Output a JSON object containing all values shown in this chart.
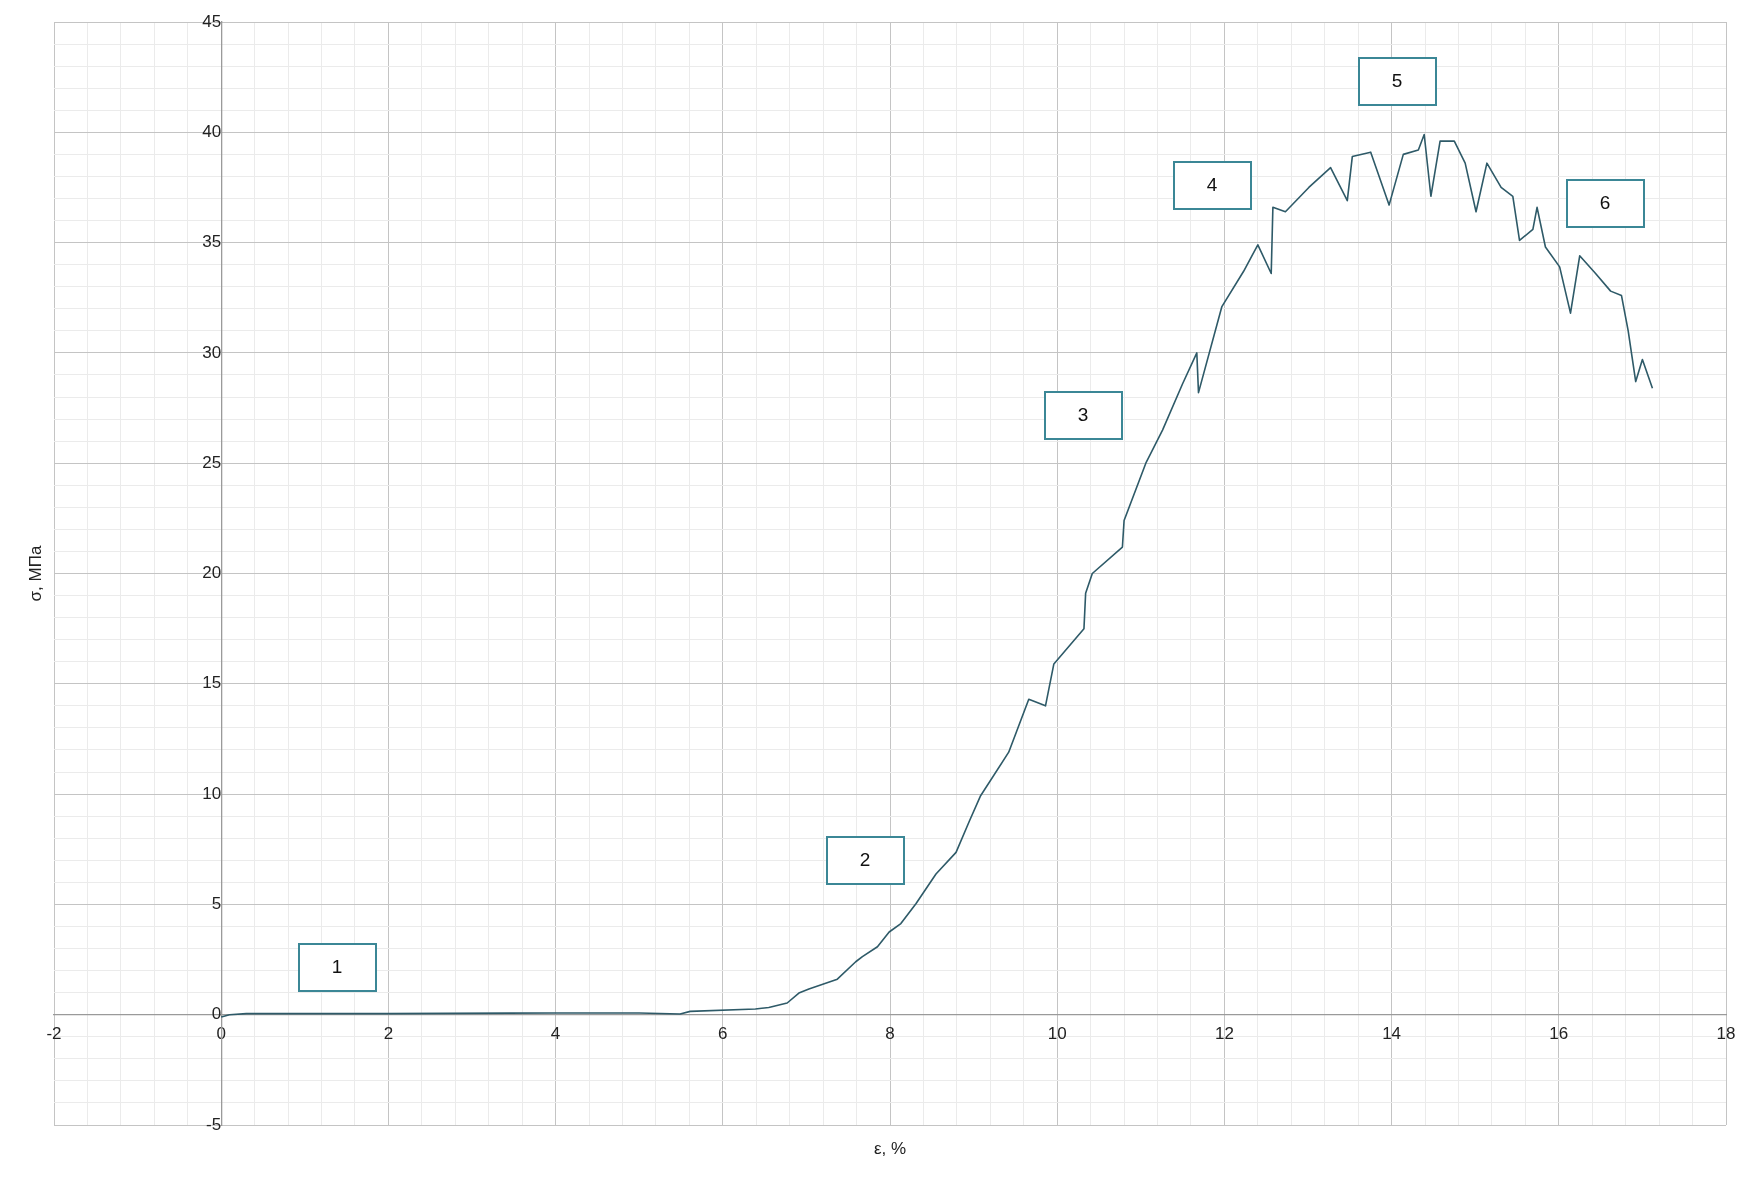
{
  "chart_data": {
    "type": "line",
    "xlabel": "ε, %",
    "ylabel": "σ, МПа",
    "x": [
      0,
      0.1,
      0.3,
      2,
      4,
      5,
      5.49,
      5.61,
      6.39,
      6.55,
      6.77,
      6.91,
      7.03,
      7.37,
      7.59,
      7.67,
      7.85,
      7.99,
      8.13,
      8.31,
      8.55,
      8.79,
      8.95,
      9.08,
      9.42,
      9.66,
      9.86,
      9.96,
      10.32,
      10.34,
      10.42,
      10.78,
      10.8,
      11.06,
      11.26,
      11.5,
      11.67,
      11.69,
      11.97,
      12.23,
      12.4,
      12.56,
      12.58,
      12.73,
      13.01,
      13.27,
      13.47,
      13.53,
      13.75,
      13.97,
      14.14,
      14.32,
      14.39,
      14.47,
      14.58,
      14.75,
      14.88,
      15.01,
      15.14,
      15.31,
      15.45,
      15.53,
      15.69,
      15.74,
      15.84,
      16.01,
      16.14,
      16.25,
      16.44,
      16.62,
      16.75,
      16.83,
      16.92,
      17,
      17.12
    ],
    "series": [
      {
        "color": "#2e5a68",
        "values": [
          -0.1,
          0,
          0.05,
          0.05,
          0.08,
          0.08,
          0.03,
          0.15,
          0.26,
          0.33,
          0.53,
          0.98,
          1.16,
          1.61,
          2.4,
          2.63,
          3.08,
          3.75,
          4.13,
          5.03,
          6.38,
          7.36,
          8.78,
          9.9,
          11.9,
          14.3,
          14,
          15.9,
          17.5,
          19.1,
          20,
          21.2,
          22.4,
          25,
          26.5,
          28.6,
          30,
          28.2,
          32.1,
          33.7,
          34.9,
          33.6,
          36.6,
          36.4,
          37.5,
          38.4,
          36.9,
          38.9,
          39.1,
          36.7,
          39,
          39.2,
          39.9,
          37.1,
          39.6,
          39.6,
          38.6,
          36.4,
          38.6,
          37.5,
          37.1,
          35.1,
          35.6,
          36.6,
          34.8,
          33.9,
          31.8,
          34.4,
          33.6,
          32.8,
          32.6,
          31,
          28.7,
          29.7,
          28.4
        ]
      }
    ],
    "xlim": [
      -2,
      18
    ],
    "xticks": [
      -2,
      {
        "value": -1.6,
        "label": null
      },
      {
        "value": -1.2,
        "label": null
      },
      {
        "value": -0.8,
        "label": null
      },
      {
        "value": -0.4,
        "label": null
      },
      0,
      {
        "value": 0.4,
        "label": null
      },
      {
        "value": 0.8,
        "label": null
      },
      {
        "value": 1.2,
        "label": null
      },
      {
        "value": 1.6,
        "label": null
      },
      2,
      {
        "value": 2.4,
        "label": null
      },
      {
        "value": 2.8,
        "label": null
      },
      {
        "value": 3.2,
        "label": null
      },
      {
        "value": 3.6,
        "label": null
      },
      4,
      {
        "value": 4.4,
        "label": null
      },
      {
        "value": 4.8,
        "label": null
      },
      {
        "value": 5.2,
        "label": null
      },
      {
        "value": 5.6,
        "label": null
      },
      6,
      {
        "value": 6.4,
        "label": null
      },
      {
        "value": 6.8,
        "label": null
      },
      {
        "value": 7.2,
        "label": null
      },
      {
        "value": 7.6,
        "label": null
      },
      8,
      {
        "value": 8.4,
        "label": null
      },
      {
        "value": 8.8,
        "label": null
      },
      {
        "value": 9.2,
        "label": null
      },
      {
        "value": 9.6,
        "label": null
      },
      10,
      {
        "value": 10.4,
        "label": null
      },
      {
        "value": 10.8,
        "label": null
      },
      {
        "value": 11.2,
        "label": null
      },
      {
        "value": 11.6,
        "label": null
      },
      12,
      {
        "value": 12.4,
        "label": null
      },
      {
        "value": 12.8,
        "label": null
      },
      {
        "value": 13.2,
        "label": null
      },
      {
        "value": 13.6,
        "label": null
      },
      14,
      {
        "value": 14.4,
        "label": null
      },
      {
        "value": 14.8,
        "label": null
      },
      {
        "value": 15.2,
        "label": null
      },
      {
        "value": 15.6,
        "label": null
      },
      16,
      {
        "value": 16.4,
        "label": null
      },
      {
        "value": 16.8,
        "label": null
      },
      {
        "value": 17.2,
        "label": null
      },
      {
        "value": 17.6,
        "label": null
      },
      18
    ],
    "ylim": [
      -5,
      45
    ],
    "yticks": [
      -5,
      {
        "value": -4,
        "label": null
      },
      {
        "value": -3,
        "label": null
      },
      {
        "value": -2,
        "label": null
      },
      {
        "value": -1,
        "label": null
      },
      0,
      {
        "value": 1,
        "label": null
      },
      {
        "value": 2,
        "label": null
      },
      {
        "value": 3,
        "label": null
      },
      {
        "value": 4,
        "label": null
      },
      5,
      {
        "value": 6,
        "label": null
      },
      {
        "value": 7,
        "label": null
      },
      {
        "value": 8,
        "label": null
      },
      {
        "value": 9,
        "label": null
      },
      10,
      {
        "value": 11,
        "label": null
      },
      {
        "value": 12,
        "label": null
      },
      {
        "value": 13,
        "label": null
      },
      {
        "value": 14,
        "label": null
      },
      15,
      {
        "value": 16,
        "label": null
      },
      {
        "value": 17,
        "label": null
      },
      {
        "value": 18,
        "label": null
      },
      {
        "value": 19,
        "label": null
      },
      20,
      {
        "value": 21,
        "label": null
      },
      {
        "value": 22,
        "label": null
      },
      {
        "value": 23,
        "label": null
      },
      {
        "value": 24,
        "label": null
      },
      25,
      {
        "value": 26,
        "label": null
      },
      {
        "value": 27,
        "label": null
      },
      {
        "value": 28,
        "label": null
      },
      {
        "value": 29,
        "label": null
      },
      30,
      {
        "value": 31,
        "label": null
      },
      {
        "value": 32,
        "label": null
      },
      {
        "value": 33,
        "label": null
      },
      {
        "value": 34,
        "label": null
      },
      35,
      {
        "value": 36,
        "label": null
      },
      {
        "value": 37,
        "label": null
      },
      {
        "value": 38,
        "label": null
      },
      {
        "value": 39,
        "label": null
      },
      40,
      {
        "value": 41,
        "label": null
      },
      {
        "value": 42,
        "label": null
      },
      {
        "value": 43,
        "label": null
      },
      {
        "value": 44,
        "label": null
      },
      45
    ],
    "grid": true,
    "annotations": [
      "1",
      "2",
      "3",
      "4",
      "5",
      "6"
    ]
  }
}
